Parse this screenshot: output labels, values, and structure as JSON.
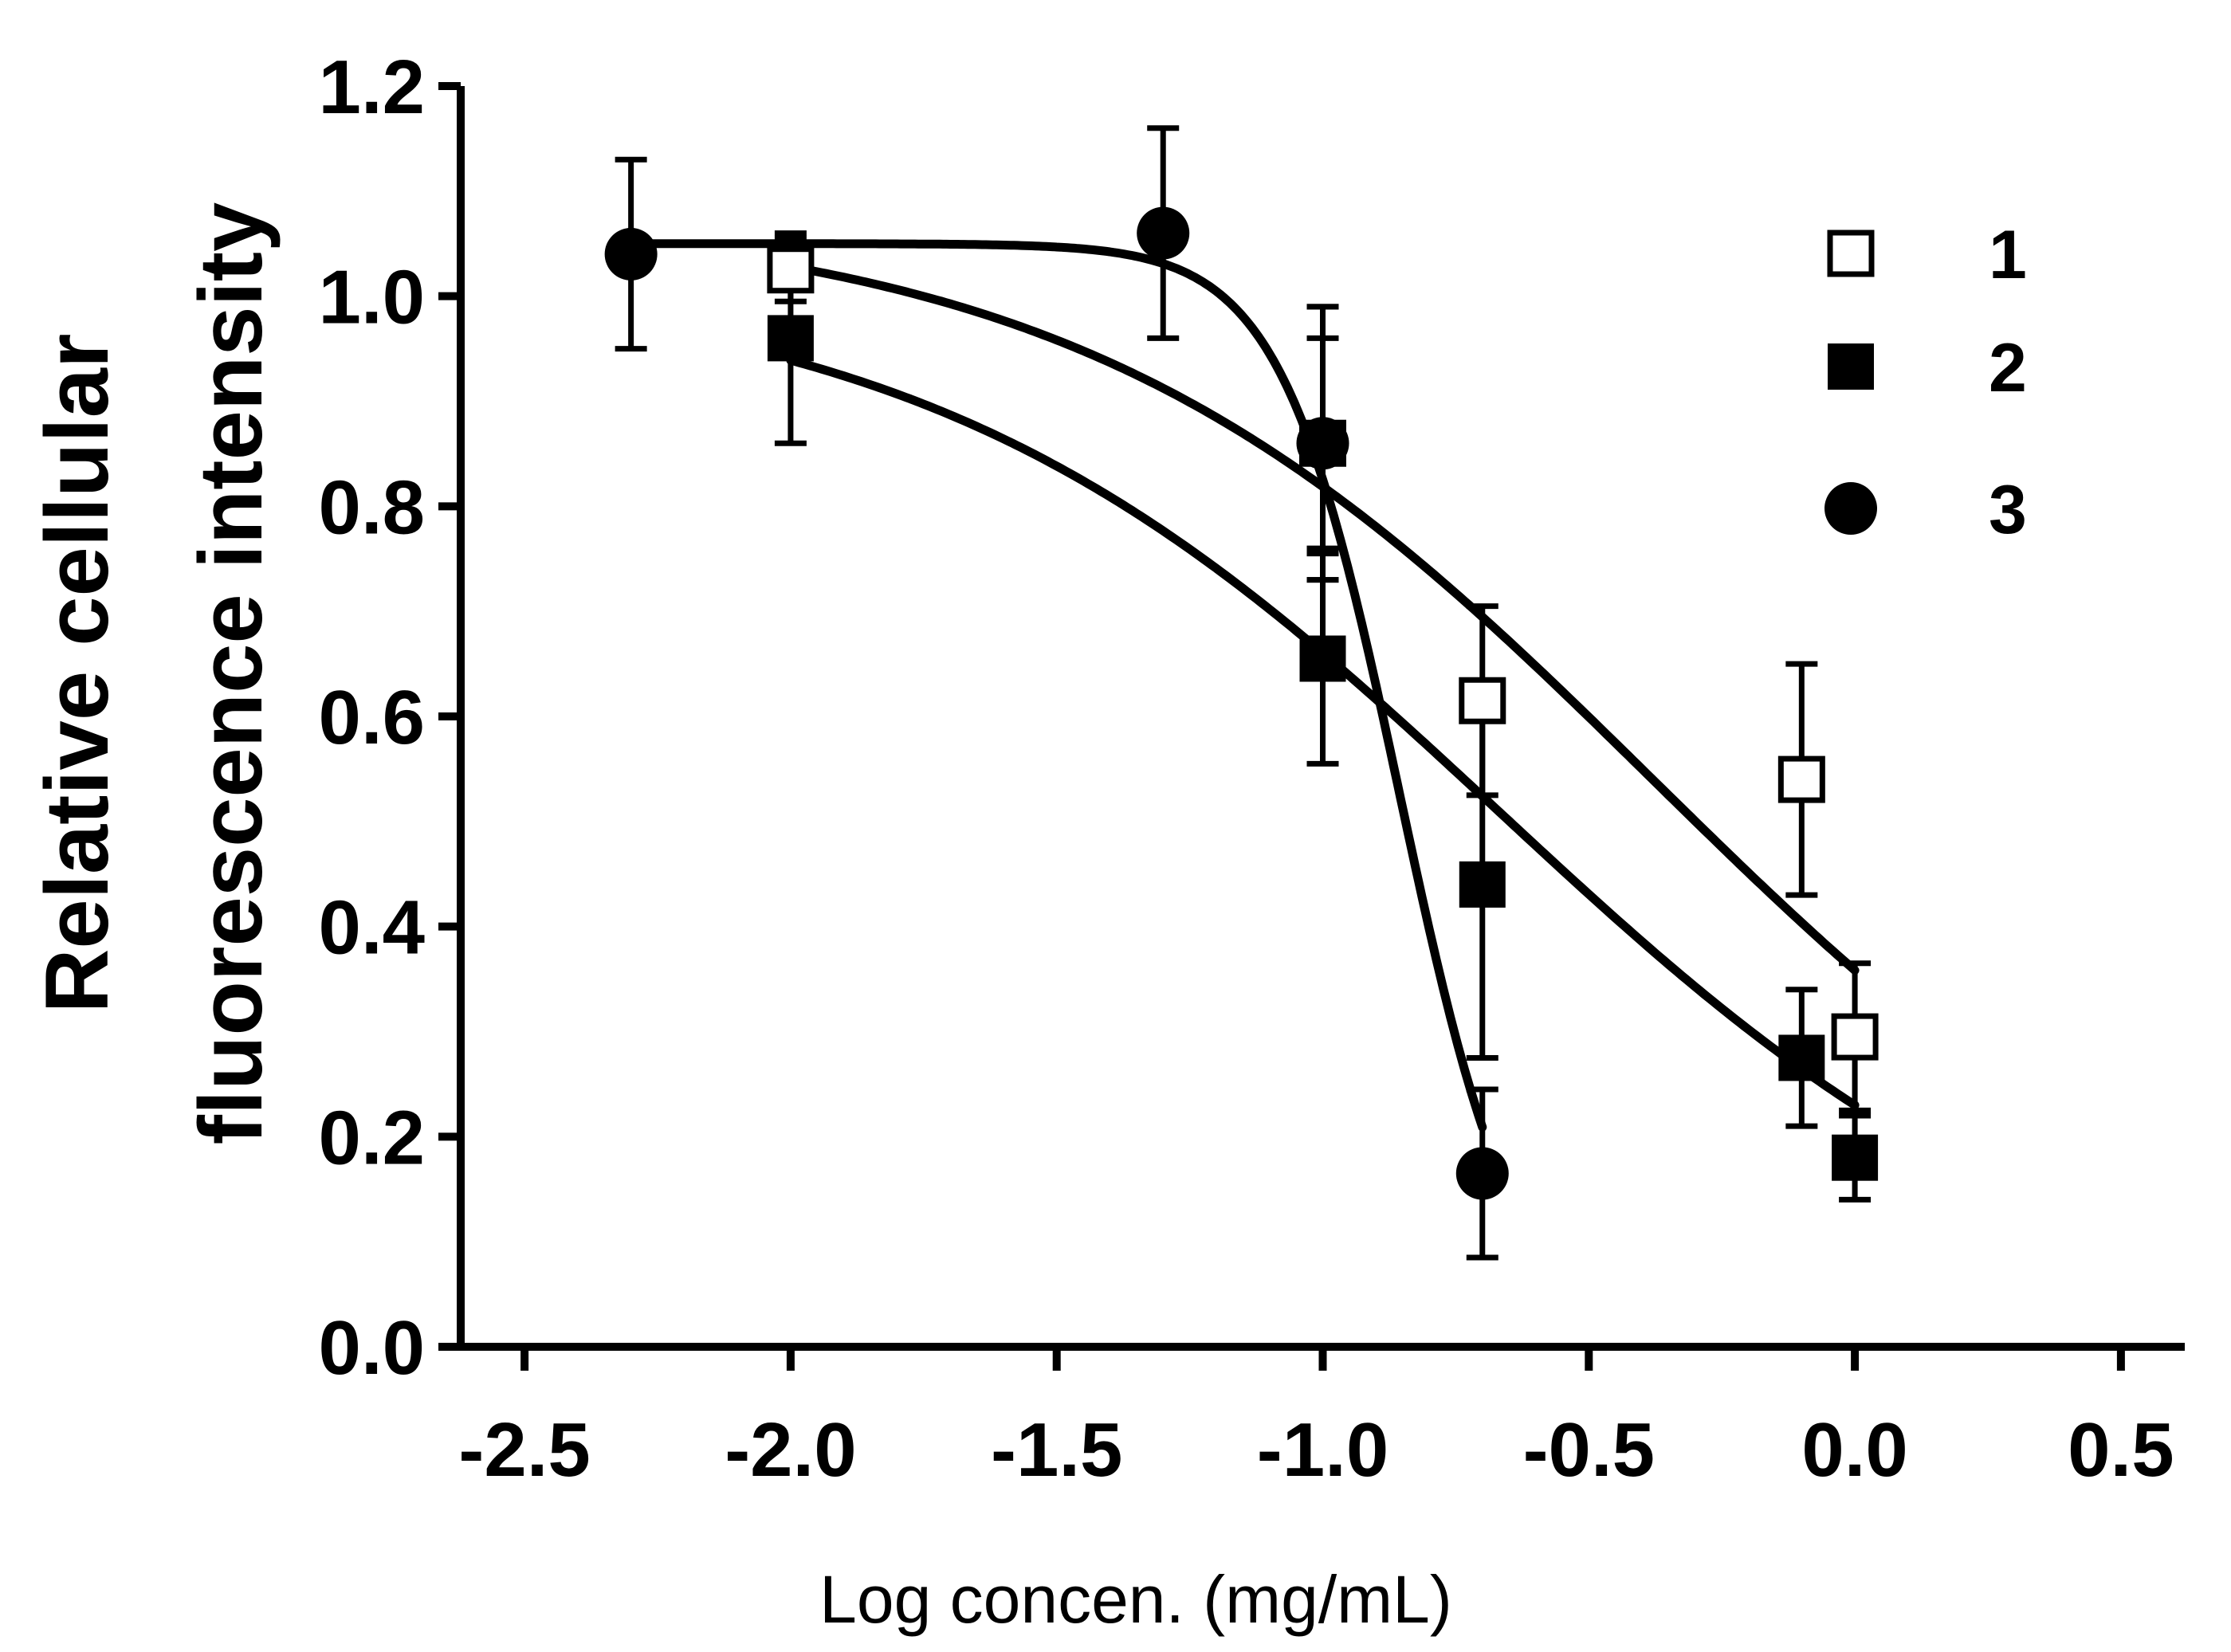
{
  "chart_data": {
    "type": "scatter",
    "title": "",
    "xlabel": "Log concen. (mg/mL)",
    "ylabel": [
      "Relative cellular",
      "fluorescence intensity"
    ],
    "xlim": [
      -2.62,
      0.62
    ],
    "ylim": [
      0,
      1.2
    ],
    "x_ticks": [
      -2.5,
      -2.0,
      -1.5,
      -1.0,
      -0.5,
      0.0,
      0.5
    ],
    "x_tick_labels": [
      "-2.5",
      "-2.0",
      "-1.5",
      "-1.0",
      "-0.5",
      "0.0",
      "0.5"
    ],
    "y_ticks": [
      0.0,
      0.2,
      0.4,
      0.6,
      0.8,
      1.0,
      1.2
    ],
    "y_tick_labels": [
      "0.0",
      "0.2",
      "0.4",
      "0.6",
      "0.8",
      "1.0",
      "1.2"
    ],
    "grid": false,
    "legend_position": "top-right",
    "series": [
      {
        "name": "1",
        "marker": "square-open",
        "x": [
          -2.0,
          -1.0,
          -0.7,
          -0.1,
          0.0
        ],
        "y": [
          1.025,
          0.86,
          0.615,
          0.54,
          0.295
        ],
        "err": [
          0.03,
          0.13,
          0.09,
          0.11,
          0.07
        ],
        "fit": {
          "top": 1.08,
          "bottom": 0.0,
          "logIC50": -0.38,
          "hill": 0.8,
          "x_from": -2.0,
          "x_to": 0.0
        }
      },
      {
        "name": "2",
        "marker": "square-filled",
        "x": [
          -2.0,
          -1.0,
          -1.0,
          -0.7,
          -0.1,
          0.0
        ],
        "y": [
          0.96,
          0.86,
          0.655,
          0.44,
          0.275,
          0.18
        ],
        "err": [
          0.1,
          0.1,
          0.1,
          0.165,
          0.065,
          0.04
        ],
        "fit": {
          "top": 1.02,
          "bottom": 0.0,
          "logIC50": -0.67,
          "hill": 0.8,
          "x_from": -2.0,
          "x_to": 0.0
        }
      },
      {
        "name": "3",
        "marker": "circle-filled",
        "x": [
          -2.3,
          -1.3,
          -1.0,
          -0.7
        ],
        "y": [
          1.04,
          1.06,
          0.86,
          0.165
        ],
        "err": [
          0.09,
          0.1,
          0.13,
          0.08
        ],
        "fit": {
          "top": 1.05,
          "bottom": 0.0,
          "logIC50": -0.855,
          "hill": 3.9,
          "x_from": -2.3,
          "x_to": -0.7
        }
      }
    ]
  }
}
